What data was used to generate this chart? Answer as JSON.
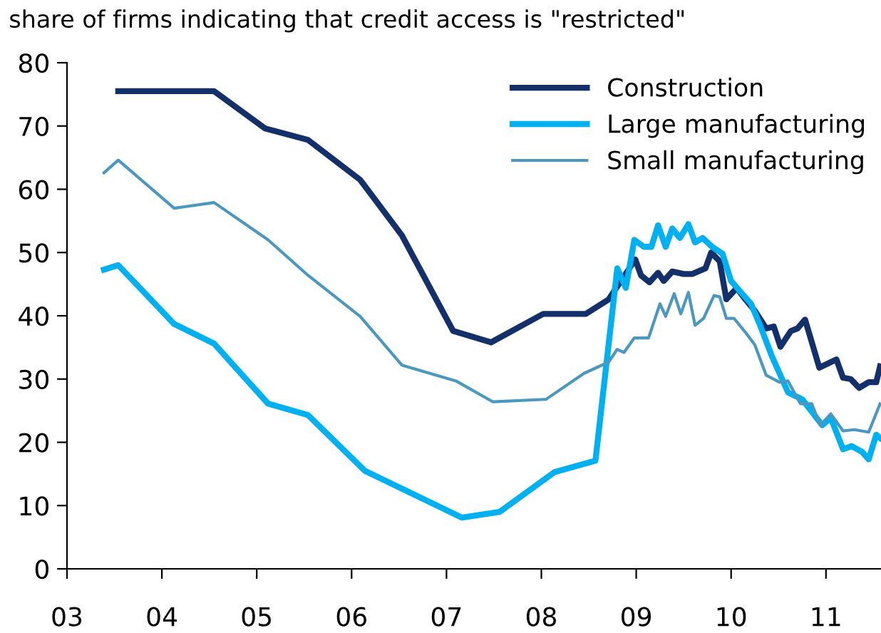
{
  "chart_data": {
    "type": "line",
    "title": "share of firms indicating that credit access is \"restricted\"",
    "xlim": [
      2003,
      2011.58
    ],
    "ylim": [
      0,
      80
    ],
    "xticks": [
      {
        "value": 2003,
        "label": "03"
      },
      {
        "value": 2004,
        "label": "04"
      },
      {
        "value": 2005,
        "label": "05"
      },
      {
        "value": 2006,
        "label": "06"
      },
      {
        "value": 2007,
        "label": "07"
      },
      {
        "value": 2008,
        "label": "08"
      },
      {
        "value": 2009,
        "label": "09"
      },
      {
        "value": 2010,
        "label": "10"
      },
      {
        "value": 2011,
        "label": "11"
      }
    ],
    "yticks": [
      0,
      10,
      20,
      30,
      40,
      50,
      60,
      70,
      80
    ],
    "grid": false,
    "legend": "top right",
    "series": [
      {
        "name": "Construction",
        "color": "#13306a",
        "x": [
          2003.54,
          2004.55,
          2005.09,
          2005.54,
          2006.09,
          2006.53,
          2007.07,
          2007.47,
          2008.02,
          2008.47,
          2008.71,
          2008.83,
          2008.99,
          2009.05,
          2009.14,
          2009.23,
          2009.29,
          2009.38,
          2009.5,
          2009.59,
          2009.73,
          2009.79,
          2009.88,
          2009.95,
          2010.06,
          2010.15,
          2010.25,
          2010.37,
          2010.45,
          2010.52,
          2010.63,
          2010.7,
          2010.78,
          2010.93,
          2011.11,
          2011.18,
          2011.26,
          2011.35,
          2011.45,
          2011.53,
          2011.57
        ],
        "values": [
          75.5,
          75.5,
          69.6,
          67.8,
          61.5,
          52.7,
          37.6,
          35.8,
          40.3,
          40.3,
          42.6,
          45.3,
          48.9,
          46.4,
          45.3,
          46.8,
          45.5,
          47,
          46.6,
          46.6,
          47.5,
          50,
          48.6,
          42.6,
          44.4,
          42.6,
          40.8,
          38,
          38.3,
          35.1,
          37.6,
          38,
          39.4,
          31.8,
          33.1,
          30.2,
          30,
          28.6,
          29.5,
          29.5,
          32
        ]
      },
      {
        "name": "Large manufacturing",
        "color": "#00b0f0",
        "x": [
          2003.39,
          2003.54,
          2004.13,
          2004.55,
          2005.12,
          2005.54,
          2006.14,
          2007.16,
          2007.56,
          2008.14,
          2008.57,
          2008.8,
          2008.89,
          2008.98,
          2009.08,
          2009.16,
          2009.23,
          2009.31,
          2009.38,
          2009.46,
          2009.55,
          2009.62,
          2009.7,
          2009.8,
          2009.91,
          2010.0,
          2010.21,
          2010.3,
          2010.43,
          2010.6,
          2010.75,
          2010.96,
          2011.05,
          2011.18,
          2011.27,
          2011.38,
          2011.45,
          2011.53,
          2011.57
        ],
        "values": [
          47.3,
          48,
          38.7,
          35.6,
          26.1,
          24.3,
          15.5,
          8.1,
          9,
          15.3,
          17.1,
          47.5,
          44.4,
          52,
          50.9,
          50.9,
          54.3,
          50.9,
          53.8,
          52.3,
          54.5,
          51.6,
          52.3,
          50.9,
          49.8,
          45.5,
          41.9,
          38.7,
          33.6,
          27.9,
          26.8,
          22.7,
          23.9,
          18.9,
          19.4,
          18.5,
          17.3,
          21.2,
          20.7
        ]
      },
      {
        "name": "Small manufacturing",
        "color": "#4a98c0",
        "x": [
          2003.39,
          2003.54,
          2004.13,
          2004.55,
          2005.12,
          2005.54,
          2006.09,
          2006.53,
          2007.1,
          2007.49,
          2008.05,
          2008.45,
          2008.71,
          2008.8,
          2008.87,
          2008.98,
          2009.13,
          2009.25,
          2009.31,
          2009.4,
          2009.47,
          2009.55,
          2009.62,
          2009.71,
          2009.82,
          2009.88,
          2009.95,
          2010.03,
          2010.15,
          2010.25,
          2010.37,
          2010.51,
          2010.6,
          2010.73,
          2010.85,
          2010.94,
          2011.05,
          2011.18,
          2011.3,
          2011.45,
          2011.57
        ],
        "values": [
          62.6,
          64.6,
          57,
          57.9,
          52,
          46.4,
          39.9,
          32.2,
          29.7,
          26.4,
          26.8,
          30.9,
          32.7,
          34.7,
          34.2,
          36.5,
          36.5,
          41.9,
          39.9,
          43.5,
          40.3,
          43.7,
          38.5,
          39.6,
          43.2,
          43,
          39.6,
          39.6,
          37.4,
          35.4,
          30.6,
          29.5,
          29.7,
          26.1,
          26.1,
          22.7,
          24.5,
          21.8,
          22,
          21.6,
          26.1
        ]
      }
    ]
  }
}
